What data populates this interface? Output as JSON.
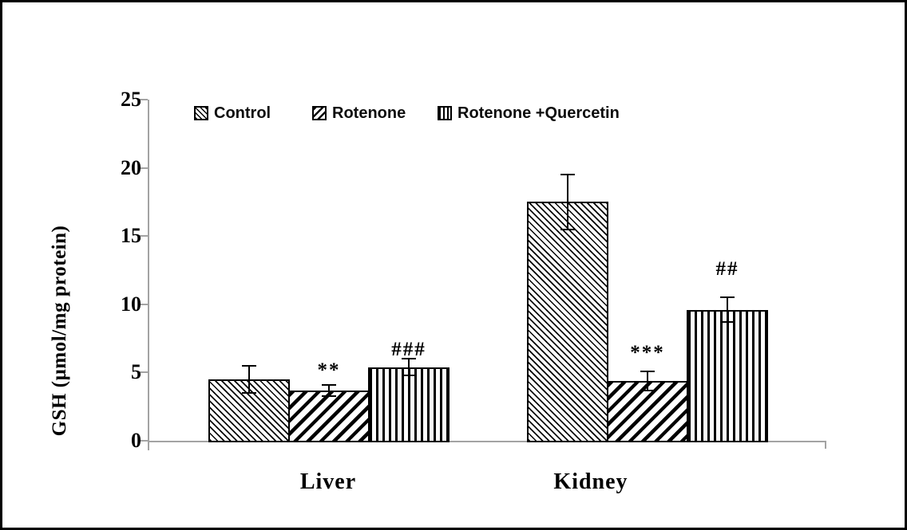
{
  "figure": {
    "background_color": "#ffffff",
    "border_color": "#000000",
    "axis_line_color": "#a3a3a3",
    "ink_color": "#000000"
  },
  "chart_data": {
    "type": "bar",
    "title": "",
    "xlabel": "",
    "ylabel": "GSH (µmol/mg protein)",
    "categories": [
      "Liver",
      "Kidney"
    ],
    "yticks": [
      0,
      5,
      10,
      15,
      20,
      25
    ],
    "ylim": [
      0,
      25
    ],
    "grid": false,
    "legend_position": "top",
    "bar_fill": "black-and-white hatch patterns",
    "series": [
      {
        "name": "Control",
        "pattern": "diagonal-thin-backslash-hatch",
        "values": [
          4.5,
          17.5
        ],
        "errors": [
          1.0,
          2.0
        ],
        "annotations": [
          "",
          ""
        ]
      },
      {
        "name": "Rotenone",
        "pattern": "diagonal-thick-slash-hatch",
        "values": [
          3.7,
          4.4
        ],
        "errors": [
          0.4,
          0.7
        ],
        "annotations": [
          "**",
          "***"
        ]
      },
      {
        "name": "Rotenone +Quercetin",
        "pattern": "vertical-lines-hatch",
        "values": [
          5.4,
          9.6
        ],
        "errors": [
          0.6,
          0.9
        ],
        "annotations": [
          "###",
          "##"
        ]
      }
    ]
  }
}
